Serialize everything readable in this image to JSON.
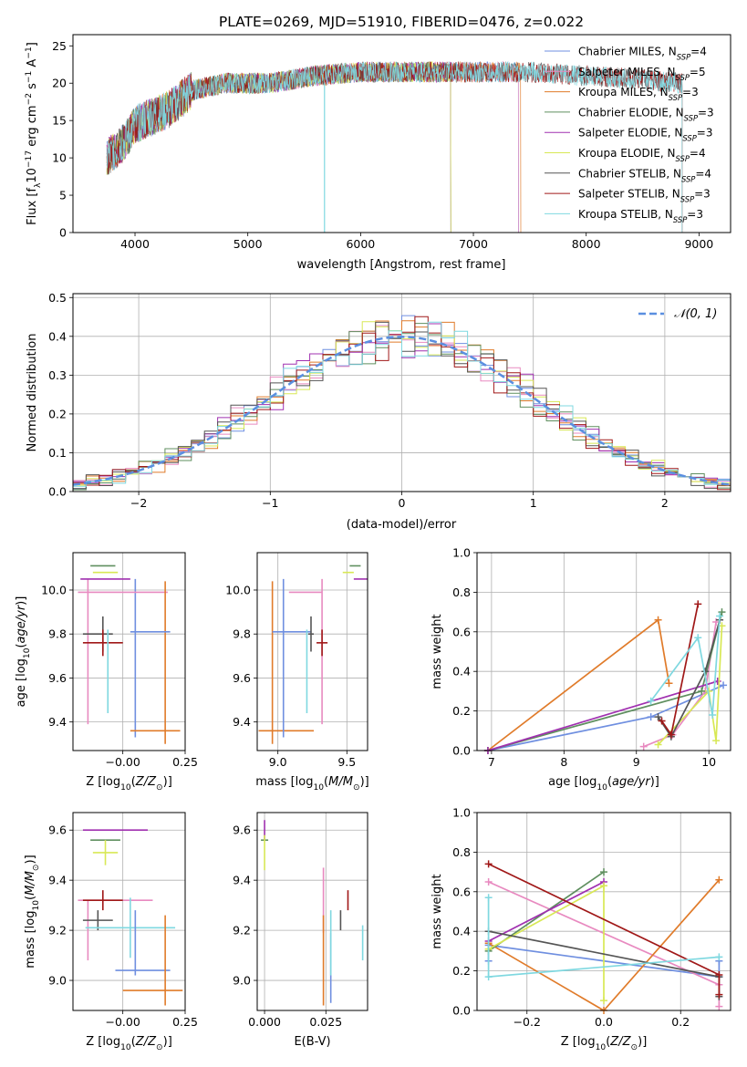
{
  "figure_title": "PLATE=0269, MJD=51910, FIBERID=0476, z=0.022",
  "colors": {
    "blue": "#6f8fe0",
    "orange": "#e07b2a",
    "green": "#5f8f5f",
    "purple": "#a030b0",
    "lime": "#d8e855",
    "dark": "#555555",
    "red": "#a01818",
    "cyan": "#7fd8e0",
    "pink": "#e88ac0",
    "normal_curve": "#5b8fe0"
  },
  "chart_data": [
    {
      "type": "line",
      "id": "spectrum",
      "title": "PLATE=0269, MJD=51910, FIBERID=0476, z=0.022",
      "xlabel": "wavelength [Angstrom, rest frame]",
      "ylabel": "Flux [f_λ 10^-17 erg cm^-2 s^-1 A^-1]",
      "xlim": [
        3450,
        9280
      ],
      "ylim": [
        0,
        26.5
      ],
      "xticks": [
        "4000",
        "5000",
        "6000",
        "7000",
        "8000",
        "9000"
      ],
      "yticks": [
        "0",
        "5",
        "10",
        "15",
        "20",
        "25"
      ],
      "grid": false,
      "legend_placement": "top-right",
      "series": [
        {
          "name": "Chabrier MILES, NSSP=4",
          "label_main": "Chabrier MILES, N",
          "label_sub": "SSP",
          "label_end": "=4",
          "color": "#6f8fe0",
          "x_range": [
            3750,
            7400
          ]
        },
        {
          "name": "Salpeter MILES, NSSP=5",
          "label_main": "Salpeter MILES, N",
          "label_sub": "SSP",
          "label_end": "=5",
          "color": "#e88ac0",
          "x_range": [
            3750,
            7400
          ]
        },
        {
          "name": "Kroupa MILES, NSSP=3",
          "label_main": "Kroupa MILES, N",
          "label_sub": "SSP",
          "label_end": "=3",
          "color": "#e07b2a",
          "x_range": [
            3750,
            7420
          ]
        },
        {
          "name": "Chabrier ELODIE, NSSP=3",
          "label_main": "Chabrier ELODIE, N",
          "label_sub": "SSP",
          "label_end": "=3",
          "color": "#5f8f5f",
          "x_range": [
            3750,
            6800
          ]
        },
        {
          "name": "Salpeter ELODIE, NSSP=3",
          "label_main": "Salpeter ELODIE, N",
          "label_sub": "SSP",
          "label_end": "=3",
          "color": "#a030b0",
          "x_range": [
            3750,
            6800
          ]
        },
        {
          "name": "Kroupa ELODIE, NSSP=4",
          "label_main": "Kroupa ELODIE, N",
          "label_sub": "SSP",
          "label_end": "=4",
          "color": "#d8e855",
          "x_range": [
            3750,
            6800
          ]
        },
        {
          "name": "Chabrier STELIB, NSSP=4",
          "label_main": "Chabrier STELIB, N",
          "label_sub": "SSP",
          "label_end": "=4",
          "color": "#555555",
          "x_range": [
            3750,
            8850
          ]
        },
        {
          "name": "Salpeter STELIB, NSSP=3",
          "label_main": "Salpeter STELIB, N",
          "label_sub": "SSP",
          "label_end": "=3",
          "color": "#a01818",
          "x_range": [
            3750,
            8850
          ]
        },
        {
          "name": "Kroupa STELIB, NSSP=3",
          "label_main": "Kroupa STELIB, N",
          "label_sub": "SSP",
          "label_end": "=3",
          "color": "#7fd8e0",
          "x_range": [
            3750,
            8850
          ]
        }
      ],
      "continuum": [
        [
          3750,
          10
        ],
        [
          3900,
          12
        ],
        [
          4000,
          14.5
        ],
        [
          4300,
          16.5
        ],
        [
          4500,
          19
        ],
        [
          4800,
          20
        ],
        [
          5200,
          20
        ],
        [
          5600,
          21
        ],
        [
          6000,
          21.5
        ],
        [
          6500,
          21.5
        ],
        [
          7000,
          21.5
        ],
        [
          7500,
          21.5
        ],
        [
          8000,
          21
        ],
        [
          8500,
          20.5
        ],
        [
          8850,
          20
        ]
      ]
    },
    {
      "type": "line",
      "id": "residuals",
      "xlabel": "(data-model)/error",
      "ylabel": "Normed distribution",
      "xlim": [
        -2.5,
        2.5
      ],
      "ylim": [
        0,
        0.51
      ],
      "xticks": [
        "−2",
        "−1",
        "0",
        "1",
        "2"
      ],
      "yticks": [
        "0.0",
        "0.1",
        "0.2",
        "0.3",
        "0.4",
        "0.5"
      ],
      "grid": true,
      "legend_placement": "top-right",
      "legend": "𝒩(0, 1)",
      "bin_width": 0.1,
      "curve": {
        "type": "normal",
        "mean": 0,
        "sigma": 1
      },
      "series_colors": [
        "#6f8fe0",
        "#e88ac0",
        "#e07b2a",
        "#5f8f5f",
        "#a030b0",
        "#d8e855",
        "#555555",
        "#a01818",
        "#7fd8e0"
      ]
    },
    {
      "type": "scatter",
      "id": "age_vs_Z",
      "xlabel": "Z [log10(Z/Z⊙)]",
      "ylabel": "age [log10(age/yr)]",
      "xlim": [
        -0.2,
        0.25
      ],
      "ylim": [
        9.27,
        10.17
      ],
      "xticks": [
        "−0.00",
        "0.25"
      ],
      "yticks": [
        "9.4",
        "9.6",
        "9.8",
        "10.0"
      ],
      "grid": true,
      "points": [
        {
          "color": "#6f8fe0",
          "x": 0.05,
          "y": 9.69,
          "xerr": 0.0,
          "yerr": 0.36
        },
        {
          "color": "#e88ac0",
          "x": 0.0,
          "y": 9.99,
          "xerr": 0.18,
          "yerr": 0.0
        },
        {
          "color": "#e88ac0",
          "x": -0.14,
          "y": 9.72,
          "xerr": 0.0,
          "yerr": 0.33
        },
        {
          "color": "#e07b2a",
          "x": 0.17,
          "y": 9.67,
          "xerr": 0.0,
          "yerr": 0.37
        },
        {
          "color": "#e07b2a",
          "x": 0.13,
          "y": 9.36,
          "xerr": 0.1,
          "yerr": 0.0
        },
        {
          "color": "#5f8f5f",
          "x": -0.08,
          "y": 10.11,
          "xerr": 0.05,
          "yerr": 0.0
        },
        {
          "color": "#a030b0",
          "x": -0.07,
          "y": 10.05,
          "xerr": 0.1,
          "yerr": 0.0
        },
        {
          "color": "#d8e855",
          "x": -0.07,
          "y": 10.08,
          "xerr": 0.05,
          "yerr": 0.0
        },
        {
          "color": "#555555",
          "x": -0.08,
          "y": 9.8,
          "xerr": 0.0,
          "yerr": 0.08
        },
        {
          "color": "#555555",
          "x": -0.1,
          "y": 9.8,
          "xerr": 0.06,
          "yerr": 0.0
        },
        {
          "color": "#a01818",
          "x": -0.08,
          "y": 9.76,
          "xerr": 0.08,
          "yerr": 0.06
        },
        {
          "color": "#7fd8e0",
          "x": -0.06,
          "y": 9.63,
          "xerr": 0.0,
          "yerr": 0.19
        },
        {
          "color": "#6f8fe0",
          "x": 0.11,
          "y": 9.81,
          "xerr": 0.08,
          "yerr": 0.0
        }
      ]
    },
    {
      "type": "scatter",
      "id": "age_vs_mass",
      "xlabel": "mass [log10(M/M⊙)]",
      "ylabel": "",
      "xlim": [
        8.85,
        9.65
      ],
      "ylim": [
        9.27,
        10.17
      ],
      "xticks": [
        "9.0",
        "9.5"
      ],
      "yticks": [
        "9.4",
        "9.6",
        "9.8",
        "10.0"
      ],
      "grid": true,
      "points": [
        {
          "color": "#e07b2a",
          "x": 8.96,
          "y": 9.67,
          "xerr": 0.0,
          "yerr": 0.37
        },
        {
          "color": "#e07b2a",
          "x": 9.06,
          "y": 9.36,
          "xerr": 0.2,
          "yerr": 0.0
        },
        {
          "color": "#6f8fe0",
          "x": 9.04,
          "y": 9.69,
          "xerr": 0.0,
          "yerr": 0.36
        },
        {
          "color": "#6f8fe0",
          "x": 9.1,
          "y": 9.81,
          "xerr": 0.14,
          "yerr": 0.0
        },
        {
          "color": "#e88ac0",
          "x": 9.32,
          "y": 9.72,
          "xerr": 0.0,
          "yerr": 0.33
        },
        {
          "color": "#e88ac0",
          "x": 9.2,
          "y": 9.99,
          "xerr": 0.12,
          "yerr": 0.0
        },
        {
          "color": "#7fd8e0",
          "x": 9.21,
          "y": 9.63,
          "xerr": 0.0,
          "yerr": 0.19
        },
        {
          "color": "#555555",
          "x": 9.24,
          "y": 9.8,
          "xerr": 0.02,
          "yerr": 0.08
        },
        {
          "color": "#a01818",
          "x": 9.32,
          "y": 9.76,
          "xerr": 0.04,
          "yerr": 0.06
        },
        {
          "color": "#5f8f5f",
          "x": 9.56,
          "y": 10.11,
          "xerr": 0.04,
          "yerr": 0.0
        },
        {
          "color": "#a030b0",
          "x": 9.6,
          "y": 10.05,
          "xerr": 0.05,
          "yerr": 0.0
        },
        {
          "color": "#d8e855",
          "x": 9.51,
          "y": 10.08,
          "xerr": 0.04,
          "yerr": 0.0
        }
      ]
    },
    {
      "type": "line",
      "id": "massweight_vs_age",
      "xlabel": "age [log10(age/yr)]",
      "ylabel": "mass weight",
      "xlim": [
        6.8,
        10.3
      ],
      "ylim": [
        0.0,
        1.0
      ],
      "xticks": [
        "7",
        "8",
        "9",
        "10"
      ],
      "yticks": [
        "0.0",
        "0.2",
        "0.4",
        "0.6",
        "0.8",
        "1.0"
      ],
      "grid": true,
      "series": [
        {
          "color": "#6f8fe0",
          "x": [
            6.95,
            9.2,
            10.2
          ],
          "y": [
            0.0,
            0.17,
            0.33
          ]
        },
        {
          "color": "#e88ac0",
          "x": [
            9.1,
            9.5,
            9.95,
            10.1
          ],
          "y": [
            0.02,
            0.08,
            0.3,
            0.65
          ]
        },
        {
          "color": "#e07b2a",
          "x": [
            6.95,
            9.3,
            9.45
          ],
          "y": [
            0.0,
            0.66,
            0.34
          ]
        },
        {
          "color": "#5f8f5f",
          "x": [
            6.95,
            9.9,
            10.18
          ],
          "y": [
            0.0,
            0.3,
            0.7
          ]
        },
        {
          "color": "#a030b0",
          "x": [
            6.95,
            10.12
          ],
          "y": [
            0.0,
            0.35
          ]
        },
        {
          "color": "#d8e855",
          "x": [
            9.3,
            10.0,
            10.1,
            10.18
          ],
          "y": [
            0.03,
            0.3,
            0.05,
            0.63
          ]
        },
        {
          "color": "#555555",
          "x": [
            9.3,
            9.48,
            9.95,
            10.15
          ],
          "y": [
            0.17,
            0.07,
            0.4,
            0.66
          ]
        },
        {
          "color": "#a01818",
          "x": [
            9.35,
            9.48,
            9.85
          ],
          "y": [
            0.15,
            0.08,
            0.74
          ]
        },
        {
          "color": "#7fd8e0",
          "x": [
            9.2,
            9.85,
            10.05,
            10.15
          ],
          "y": [
            0.25,
            0.57,
            0.18,
            0.68
          ]
        }
      ]
    },
    {
      "type": "scatter",
      "id": "mass_vs_Z",
      "xlabel": "Z [log10(Z/Z⊙)]",
      "ylabel": "mass [log10(M/M⊙)]",
      "xlim": [
        -0.2,
        0.25
      ],
      "ylim": [
        8.88,
        9.67
      ],
      "xticks": [
        "−0.00",
        "0.25"
      ],
      "yticks": [
        "9.0",
        "9.2",
        "9.4",
        "9.6"
      ],
      "grid": true,
      "points": [
        {
          "color": "#a030b0",
          "x": -0.03,
          "y": 9.6,
          "xerr": 0.13,
          "yerr": 0.0
        },
        {
          "color": "#5f8f5f",
          "x": -0.07,
          "y": 9.56,
          "xerr": 0.06,
          "yerr": 0.0
        },
        {
          "color": "#d8e855",
          "x": -0.07,
          "y": 9.51,
          "xerr": 0.05,
          "yerr": 0.05
        },
        {
          "color": "#e88ac0",
          "x": -0.14,
          "y": 9.2,
          "xerr": 0.0,
          "yerr": 0.12
        },
        {
          "color": "#e88ac0",
          "x": -0.03,
          "y": 9.32,
          "xerr": 0.15,
          "yerr": 0.0
        },
        {
          "color": "#a01818",
          "x": -0.08,
          "y": 9.32,
          "xerr": 0.08,
          "yerr": 0.04
        },
        {
          "color": "#555555",
          "x": -0.1,
          "y": 9.24,
          "xerr": 0.06,
          "yerr": 0.04
        },
        {
          "color": "#7fd8e0",
          "x": 0.03,
          "y": 9.21,
          "xerr": 0.18,
          "yerr": 0.12
        },
        {
          "color": "#6f8fe0",
          "x": 0.05,
          "y": 9.15,
          "xerr": 0.0,
          "yerr": 0.13
        },
        {
          "color": "#6f8fe0",
          "x": 0.08,
          "y": 9.04,
          "xerr": 0.11,
          "yerr": 0.0
        },
        {
          "color": "#e07b2a",
          "x": 0.17,
          "y": 9.08,
          "xerr": 0.0,
          "yerr": 0.18
        },
        {
          "color": "#e07b2a",
          "x": 0.12,
          "y": 8.96,
          "xerr": 0.12,
          "yerr": 0.0
        }
      ]
    },
    {
      "type": "scatter",
      "id": "mass_vs_EBV",
      "xlabel": "E(B-V)",
      "ylabel": "",
      "xlim": [
        -0.003,
        0.042
      ],
      "ylim": [
        8.88,
        9.67
      ],
      "xticks": [
        "0.000",
        "0.025"
      ],
      "yticks": [
        "9.0",
        "9.2",
        "9.4",
        "9.6"
      ],
      "grid": true,
      "points": [
        {
          "color": "#a030b0",
          "x": 0.0,
          "y": 9.6,
          "xerr": 0.0,
          "yerr": 0.04
        },
        {
          "color": "#5f8f5f",
          "x": 0.0,
          "y": 9.56,
          "xerr": 0.0,
          "yerr": 0.0
        },
        {
          "color": "#d8e855",
          "x": 0.0,
          "y": 9.51,
          "xerr": 0.0,
          "yerr": 0.07
        },
        {
          "color": "#e88ac0",
          "x": 0.024,
          "y": 9.32,
          "xerr": 0.0,
          "yerr": 0.13
        },
        {
          "color": "#e07b2a",
          "x": 0.024,
          "y": 9.08,
          "xerr": 0.0,
          "yerr": 0.18
        },
        {
          "color": "#6f8fe0",
          "x": 0.027,
          "y": 9.05,
          "xerr": 0.0,
          "yerr": 0.14
        },
        {
          "color": "#7fd8e0",
          "x": 0.027,
          "y": 9.15,
          "xerr": 0.0,
          "yerr": 0.13
        },
        {
          "color": "#555555",
          "x": 0.031,
          "y": 9.24,
          "xerr": 0.0,
          "yerr": 0.04
        },
        {
          "color": "#a01818",
          "x": 0.034,
          "y": 9.32,
          "xerr": 0.0,
          "yerr": 0.04
        },
        {
          "color": "#7fd8e0",
          "x": 0.04,
          "y": 9.15,
          "xerr": 0.0,
          "yerr": 0.07
        }
      ]
    },
    {
      "type": "line",
      "id": "massweight_vs_Z",
      "xlabel": "Z [log10(Z/Z⊙)]",
      "ylabel": "mass weight",
      "xlim": [
        -0.33,
        0.33
      ],
      "ylim": [
        0.0,
        1.0
      ],
      "xticks": [
        "−0.2",
        "0.0",
        "0.2"
      ],
      "yticks": [
        "0.0",
        "0.2",
        "0.4",
        "0.6",
        "0.8",
        "1.0"
      ],
      "grid": true,
      "series": [
        {
          "color": "#6f8fe0",
          "x": [
            -0.3,
            -0.3,
            0.3,
            0.3
          ],
          "y": [
            0.25,
            0.33,
            0.17,
            0.25
          ]
        },
        {
          "color": "#e88ac0",
          "x": [
            -0.3,
            0.3,
            0.3
          ],
          "y": [
            0.65,
            0.13,
            0.02
          ]
        },
        {
          "color": "#e07b2a",
          "x": [
            -0.3,
            0.0,
            0.3
          ],
          "y": [
            0.34,
            0.0,
            0.66
          ]
        },
        {
          "color": "#5f8f5f",
          "x": [
            -0.3,
            0.0
          ],
          "y": [
            0.3,
            0.7
          ]
        },
        {
          "color": "#a030b0",
          "x": [
            -0.3,
            0.0
          ],
          "y": [
            0.35,
            0.65
          ]
        },
        {
          "color": "#d8e855",
          "x": [
            -0.3,
            0.0,
            0.0
          ],
          "y": [
            0.31,
            0.63,
            0.05
          ]
        },
        {
          "color": "#555555",
          "x": [
            -0.3,
            0.3,
            0.3
          ],
          "y": [
            0.4,
            0.17,
            0.07
          ]
        },
        {
          "color": "#a01818",
          "x": [
            -0.3,
            0.3,
            0.3
          ],
          "y": [
            0.74,
            0.18,
            0.08
          ]
        },
        {
          "color": "#7fd8e0",
          "x": [
            -0.3,
            -0.3,
            0.3
          ],
          "y": [
            0.57,
            0.17,
            0.27
          ]
        }
      ]
    }
  ]
}
